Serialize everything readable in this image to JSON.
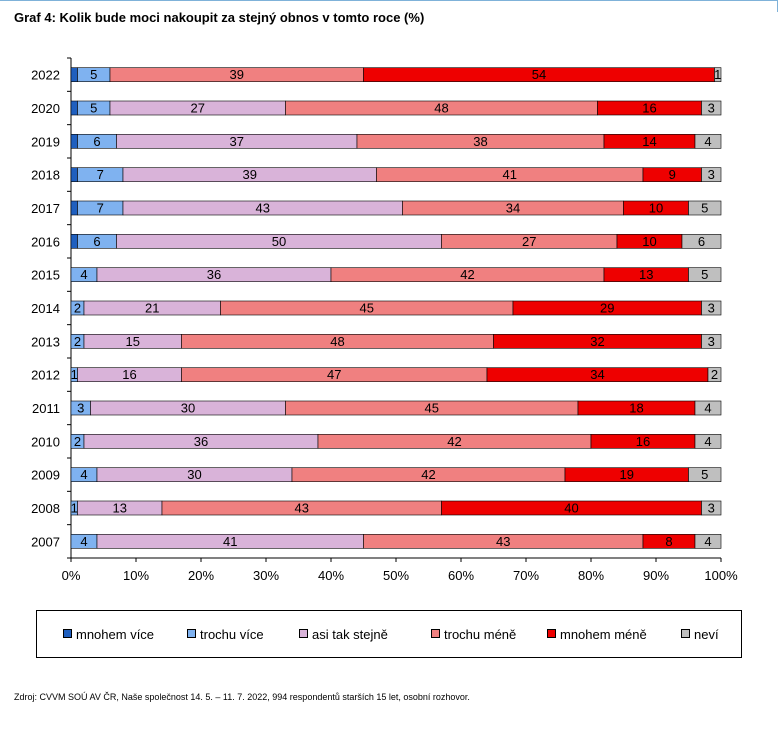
{
  "title": "Graf 4: Kolik bude moci nakoupit za stejný obnos v tomto roce (%)",
  "source": "Zdroj: CVVM SOÚ AV ČR, Naše společnost 14. 5. – 11. 7. 2022, 994 respondentů starších 15 let, osobní rozhovor.",
  "legend": [
    {
      "label": "mnohem více",
      "color": "#1f5fbf"
    },
    {
      "label": "trochu více",
      "color": "#7fb2f0"
    },
    {
      "label": "asi tak stejně",
      "color": "#d9b3d9"
    },
    {
      "label": "trochu méně",
      "color": "#f08080"
    },
    {
      "label": "mnohem méně",
      "color": "#ee0000"
    },
    {
      "label": "neví",
      "color": "#bfbfbf"
    }
  ],
  "chart_data": {
    "type": "bar",
    "orientation": "horizontal",
    "stacked": "percent",
    "categories": [
      "2022",
      "2020",
      "2019",
      "2018",
      "2017",
      "2016",
      "2015",
      "2014",
      "2013",
      "2012",
      "2011",
      "2010",
      "2009",
      "2008",
      "2007"
    ],
    "x_ticks": [
      "0%",
      "10%",
      "20%",
      "30%",
      "40%",
      "50%",
      "60%",
      "70%",
      "80%",
      "90%",
      "100%"
    ],
    "xlim": [
      0,
      100
    ],
    "legend_position": "bottom",
    "series": [
      {
        "name": "mnohem více",
        "values": [
          1,
          1,
          1,
          1,
          1,
          1,
          0,
          0,
          0,
          0,
          0,
          0,
          0,
          0,
          0
        ],
        "labels": [
          "",
          "",
          "",
          "",
          "",
          "",
          "",
          "",
          "",
          "",
          "",
          "",
          "",
          "",
          ""
        ]
      },
      {
        "name": "trochu více",
        "values": [
          5,
          5,
          6,
          7,
          7,
          6,
          4,
          2,
          2,
          1,
          3,
          2,
          4,
          1,
          4
        ],
        "labels": [
          "5",
          "5",
          "6",
          "7",
          "7",
          "6",
          "4",
          "2",
          "2",
          "1",
          "3",
          "2",
          "4",
          "1",
          "4"
        ]
      },
      {
        "name": "asi tak stejně",
        "values": [
          0,
          27,
          37,
          39,
          43,
          50,
          36,
          21,
          15,
          16,
          30,
          36,
          30,
          13,
          41
        ],
        "labels": [
          "",
          "27",
          "37",
          "39",
          "43",
          "50",
          "36",
          "21",
          "15",
          "16",
          "30",
          "36",
          "30",
          "13",
          "41"
        ]
      },
      {
        "name": "trochu méně",
        "values": [
          39,
          48,
          38,
          41,
          34,
          27,
          42,
          45,
          48,
          47,
          45,
          42,
          42,
          43,
          43
        ],
        "labels": [
          "39",
          "48",
          "38",
          "41",
          "34",
          "27",
          "42",
          "45",
          "48",
          "47",
          "45",
          "42",
          "42",
          "43",
          "43"
        ]
      },
      {
        "name": "mnohem méně",
        "values": [
          54,
          16,
          14,
          9,
          10,
          10,
          13,
          29,
          32,
          34,
          18,
          16,
          19,
          40,
          8
        ],
        "labels": [
          "54",
          "16",
          "14",
          "9",
          "10",
          "10",
          "13",
          "29",
          "32",
          "34",
          "18",
          "16",
          "19",
          "40",
          "8"
        ]
      },
      {
        "name": "neví",
        "values": [
          1,
          3,
          4,
          3,
          5,
          6,
          5,
          3,
          3,
          2,
          4,
          4,
          5,
          3,
          4
        ],
        "labels": [
          "1",
          "3",
          "4",
          "3",
          "5",
          "6",
          "5",
          "3",
          "3",
          "2",
          "4",
          "4",
          "5",
          "3",
          "4"
        ]
      }
    ]
  }
}
